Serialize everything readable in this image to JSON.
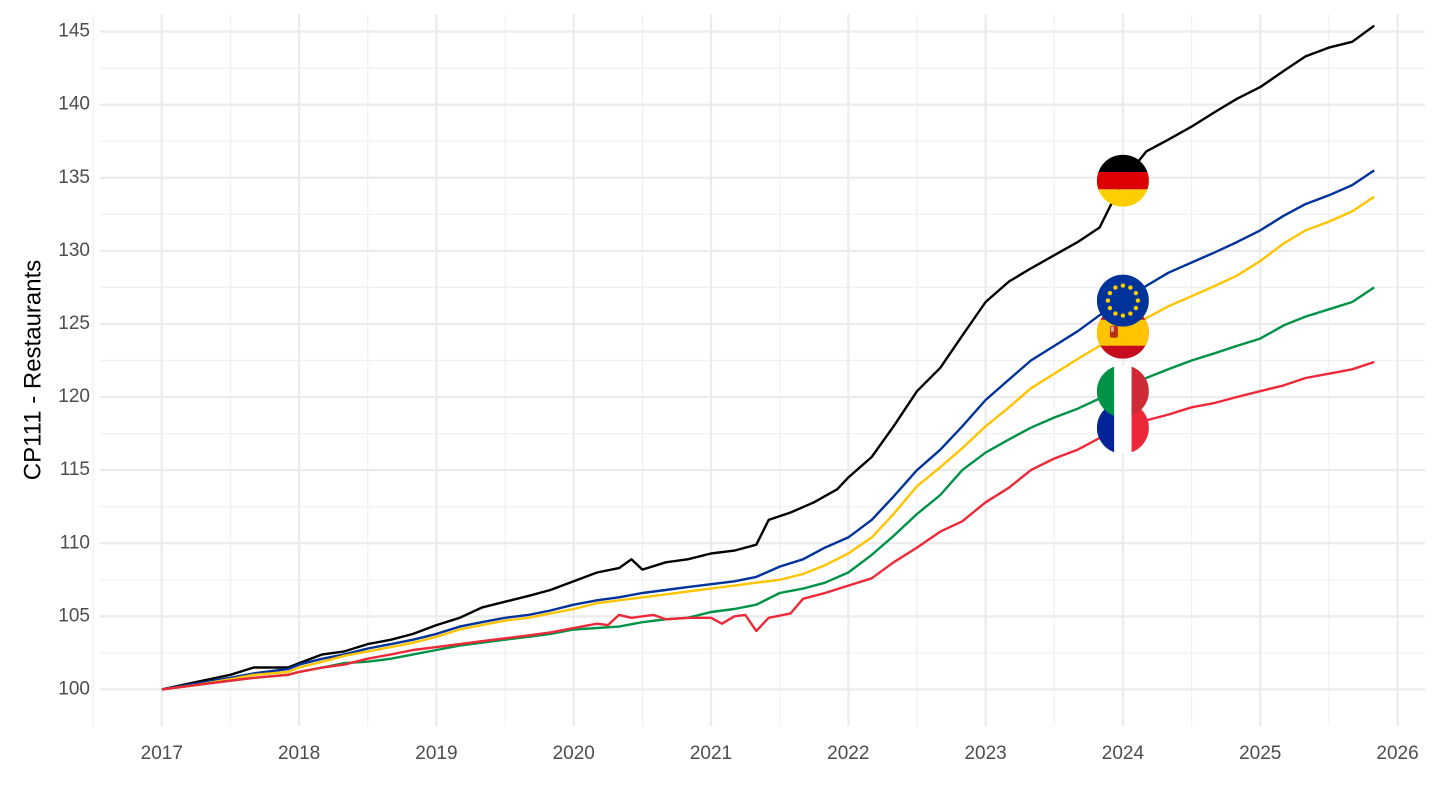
{
  "chart_data": {
    "type": "line",
    "title": "",
    "xlabel": "",
    "ylabel": "CP111 - Restaurants",
    "xlim": [
      2016.55,
      2026.2
    ],
    "ylim": [
      97.5,
      146.2
    ],
    "grid": true,
    "legend": "flag markers at 2024",
    "x_ticks": [
      2017,
      2018,
      2019,
      2020,
      2021,
      2022,
      2023,
      2024,
      2025,
      2026
    ],
    "x_tick_labels": [
      "2017",
      "2018",
      "2019",
      "2020",
      "2021",
      "2022",
      "2023",
      "2024",
      "2025",
      "2026"
    ],
    "y_ticks": [
      100,
      105,
      110,
      115,
      120,
      125,
      130,
      135,
      140,
      145
    ],
    "y_tick_labels": [
      "100",
      "105",
      "110",
      "115",
      "120",
      "125",
      "130",
      "135",
      "140",
      "145"
    ],
    "series": [
      {
        "name": "Germany",
        "color": "#000000",
        "flag": "germany",
        "marker_value": 134.8,
        "points": [
          [
            2017.0,
            100.0
          ],
          [
            2017.25,
            100.5
          ],
          [
            2017.5,
            101.0
          ],
          [
            2017.67,
            101.5
          ],
          [
            2017.92,
            101.5
          ],
          [
            2018.0,
            101.8
          ],
          [
            2018.17,
            102.4
          ],
          [
            2018.33,
            102.6
          ],
          [
            2018.5,
            103.1
          ],
          [
            2018.67,
            103.4
          ],
          [
            2018.83,
            103.8
          ],
          [
            2019.0,
            104.4
          ],
          [
            2019.17,
            104.9
          ],
          [
            2019.33,
            105.6
          ],
          [
            2019.5,
            106.0
          ],
          [
            2019.67,
            106.4
          ],
          [
            2019.83,
            106.8
          ],
          [
            2020.0,
            107.4
          ],
          [
            2020.17,
            108.0
          ],
          [
            2020.33,
            108.3
          ],
          [
            2020.42,
            108.9
          ],
          [
            2020.5,
            108.2
          ],
          [
            2020.67,
            108.7
          ],
          [
            2020.83,
            108.9
          ],
          [
            2021.0,
            109.3
          ],
          [
            2021.17,
            109.5
          ],
          [
            2021.33,
            109.9
          ],
          [
            2021.42,
            111.6
          ],
          [
            2021.58,
            112.1
          ],
          [
            2021.75,
            112.8
          ],
          [
            2021.92,
            113.7
          ],
          [
            2022.0,
            114.5
          ],
          [
            2022.17,
            115.9
          ],
          [
            2022.33,
            118.0
          ],
          [
            2022.5,
            120.4
          ],
          [
            2022.67,
            122.0
          ],
          [
            2022.83,
            124.2
          ],
          [
            2023.0,
            126.5
          ],
          [
            2023.17,
            127.9
          ],
          [
            2023.33,
            128.8
          ],
          [
            2023.5,
            129.7
          ],
          [
            2023.67,
            130.6
          ],
          [
            2023.83,
            131.6
          ],
          [
            2024.0,
            134.8
          ],
          [
            2024.17,
            136.8
          ],
          [
            2024.33,
            137.6
          ],
          [
            2024.5,
            138.5
          ],
          [
            2024.67,
            139.5
          ],
          [
            2024.83,
            140.4
          ],
          [
            2025.0,
            141.2
          ],
          [
            2025.17,
            142.3
          ],
          [
            2025.33,
            143.3
          ],
          [
            2025.5,
            143.9
          ],
          [
            2025.67,
            144.3
          ],
          [
            2025.83,
            145.4
          ]
        ]
      },
      {
        "name": "Euro area",
        "color": "#003399",
        "flag": "eu",
        "marker_value": 126.6,
        "points": [
          [
            2017.0,
            100.0
          ],
          [
            2017.25,
            100.4
          ],
          [
            2017.5,
            100.8
          ],
          [
            2017.67,
            101.1
          ],
          [
            2017.92,
            101.4
          ],
          [
            2018.0,
            101.7
          ],
          [
            2018.17,
            102.1
          ],
          [
            2018.33,
            102.4
          ],
          [
            2018.5,
            102.8
          ],
          [
            2018.67,
            103.1
          ],
          [
            2018.83,
            103.4
          ],
          [
            2019.0,
            103.8
          ],
          [
            2019.17,
            104.3
          ],
          [
            2019.33,
            104.6
          ],
          [
            2019.5,
            104.9
          ],
          [
            2019.67,
            105.1
          ],
          [
            2019.83,
            105.4
          ],
          [
            2020.0,
            105.8
          ],
          [
            2020.17,
            106.1
          ],
          [
            2020.33,
            106.3
          ],
          [
            2020.5,
            106.6
          ],
          [
            2020.67,
            106.8
          ],
          [
            2020.83,
            107.0
          ],
          [
            2021.0,
            107.2
          ],
          [
            2021.17,
            107.4
          ],
          [
            2021.33,
            107.7
          ],
          [
            2021.5,
            108.4
          ],
          [
            2021.67,
            108.9
          ],
          [
            2021.83,
            109.7
          ],
          [
            2022.0,
            110.4
          ],
          [
            2022.17,
            111.6
          ],
          [
            2022.33,
            113.2
          ],
          [
            2022.5,
            115.0
          ],
          [
            2022.67,
            116.4
          ],
          [
            2022.83,
            118.0
          ],
          [
            2023.0,
            119.8
          ],
          [
            2023.17,
            121.2
          ],
          [
            2023.33,
            122.5
          ],
          [
            2023.5,
            123.5
          ],
          [
            2023.67,
            124.5
          ],
          [
            2023.83,
            125.6
          ],
          [
            2024.0,
            126.6
          ],
          [
            2024.17,
            127.6
          ],
          [
            2024.33,
            128.5
          ],
          [
            2024.5,
            129.2
          ],
          [
            2024.67,
            129.9
          ],
          [
            2024.83,
            130.6
          ],
          [
            2025.0,
            131.4
          ],
          [
            2025.17,
            132.4
          ],
          [
            2025.33,
            133.2
          ],
          [
            2025.5,
            133.8
          ],
          [
            2025.67,
            134.5
          ],
          [
            2025.83,
            135.5
          ]
        ]
      },
      {
        "name": "Spain",
        "color": "#ffc400",
        "flag": "spain",
        "marker_value": 124.4,
        "points": [
          [
            2017.0,
            100.0
          ],
          [
            2017.25,
            100.3
          ],
          [
            2017.5,
            100.7
          ],
          [
            2017.67,
            101.0
          ],
          [
            2017.92,
            101.2
          ],
          [
            2018.0,
            101.5
          ],
          [
            2018.17,
            101.9
          ],
          [
            2018.33,
            102.3
          ],
          [
            2018.5,
            102.6
          ],
          [
            2018.67,
            102.9
          ],
          [
            2018.83,
            103.2
          ],
          [
            2019.0,
            103.6
          ],
          [
            2019.17,
            104.1
          ],
          [
            2019.33,
            104.4
          ],
          [
            2019.5,
            104.7
          ],
          [
            2019.67,
            104.9
          ],
          [
            2019.83,
            105.2
          ],
          [
            2020.0,
            105.5
          ],
          [
            2020.17,
            105.9
          ],
          [
            2020.33,
            106.1
          ],
          [
            2020.5,
            106.3
          ],
          [
            2020.67,
            106.5
          ],
          [
            2020.83,
            106.7
          ],
          [
            2021.0,
            106.9
          ],
          [
            2021.17,
            107.1
          ],
          [
            2021.33,
            107.3
          ],
          [
            2021.5,
            107.5
          ],
          [
            2021.67,
            107.9
          ],
          [
            2021.83,
            108.5
          ],
          [
            2022.0,
            109.3
          ],
          [
            2022.17,
            110.4
          ],
          [
            2022.33,
            112.0
          ],
          [
            2022.5,
            113.9
          ],
          [
            2022.67,
            115.2
          ],
          [
            2022.83,
            116.5
          ],
          [
            2023.0,
            118.0
          ],
          [
            2023.17,
            119.3
          ],
          [
            2023.33,
            120.6
          ],
          [
            2023.5,
            121.6
          ],
          [
            2023.67,
            122.6
          ],
          [
            2023.83,
            123.5
          ],
          [
            2024.0,
            124.4
          ],
          [
            2024.17,
            125.4
          ],
          [
            2024.33,
            126.2
          ],
          [
            2024.5,
            126.9
          ],
          [
            2024.67,
            127.6
          ],
          [
            2024.83,
            128.3
          ],
          [
            2025.0,
            129.3
          ],
          [
            2025.17,
            130.5
          ],
          [
            2025.33,
            131.4
          ],
          [
            2025.5,
            132.0
          ],
          [
            2025.67,
            132.7
          ],
          [
            2025.83,
            133.7
          ]
        ]
      },
      {
        "name": "Italy",
        "color": "#009246",
        "flag": "italy",
        "marker_value": 120.4,
        "points": [
          [
            2017.0,
            100.0
          ],
          [
            2017.25,
            100.3
          ],
          [
            2017.5,
            100.6
          ],
          [
            2017.67,
            100.8
          ],
          [
            2017.92,
            101.0
          ],
          [
            2018.0,
            101.2
          ],
          [
            2018.17,
            101.5
          ],
          [
            2018.33,
            101.8
          ],
          [
            2018.5,
            101.9
          ],
          [
            2018.67,
            102.1
          ],
          [
            2018.83,
            102.4
          ],
          [
            2019.0,
            102.7
          ],
          [
            2019.17,
            103.0
          ],
          [
            2019.33,
            103.2
          ],
          [
            2019.5,
            103.4
          ],
          [
            2019.67,
            103.6
          ],
          [
            2019.83,
            103.8
          ],
          [
            2020.0,
            104.1
          ],
          [
            2020.17,
            104.2
          ],
          [
            2020.33,
            104.3
          ],
          [
            2020.5,
            104.6
          ],
          [
            2020.67,
            104.8
          ],
          [
            2020.83,
            104.9
          ],
          [
            2021.0,
            105.3
          ],
          [
            2021.17,
            105.5
          ],
          [
            2021.33,
            105.8
          ],
          [
            2021.5,
            106.6
          ],
          [
            2021.67,
            106.9
          ],
          [
            2021.83,
            107.3
          ],
          [
            2022.0,
            108.0
          ],
          [
            2022.17,
            109.2
          ],
          [
            2022.33,
            110.5
          ],
          [
            2022.5,
            112.0
          ],
          [
            2022.67,
            113.3
          ],
          [
            2022.83,
            115.0
          ],
          [
            2023.0,
            116.2
          ],
          [
            2023.17,
            117.1
          ],
          [
            2023.33,
            117.9
          ],
          [
            2023.5,
            118.6
          ],
          [
            2023.67,
            119.2
          ],
          [
            2023.83,
            119.9
          ],
          [
            2024.0,
            120.5
          ],
          [
            2024.17,
            121.3
          ],
          [
            2024.33,
            121.9
          ],
          [
            2024.5,
            122.5
          ],
          [
            2024.67,
            123.0
          ],
          [
            2024.83,
            123.5
          ],
          [
            2025.0,
            124.0
          ],
          [
            2025.17,
            124.9
          ],
          [
            2025.33,
            125.5
          ],
          [
            2025.5,
            126.0
          ],
          [
            2025.67,
            126.5
          ],
          [
            2025.83,
            127.5
          ]
        ]
      },
      {
        "name": "France",
        "color": "#ed2939",
        "flag": "france",
        "marker_value": 117.9,
        "points": [
          [
            2017.0,
            100.0
          ],
          [
            2017.25,
            100.3
          ],
          [
            2017.5,
            100.6
          ],
          [
            2017.67,
            100.8
          ],
          [
            2017.92,
            101.0
          ],
          [
            2018.0,
            101.2
          ],
          [
            2018.17,
            101.5
          ],
          [
            2018.33,
            101.7
          ],
          [
            2018.5,
            102.1
          ],
          [
            2018.67,
            102.4
          ],
          [
            2018.83,
            102.7
          ],
          [
            2019.0,
            102.9
          ],
          [
            2019.17,
            103.1
          ],
          [
            2019.33,
            103.3
          ],
          [
            2019.5,
            103.5
          ],
          [
            2019.67,
            103.7
          ],
          [
            2019.83,
            103.9
          ],
          [
            2020.0,
            104.2
          ],
          [
            2020.17,
            104.5
          ],
          [
            2020.25,
            104.4
          ],
          [
            2020.33,
            105.1
          ],
          [
            2020.42,
            104.9
          ],
          [
            2020.58,
            105.1
          ],
          [
            2020.67,
            104.8
          ],
          [
            2020.83,
            104.9
          ],
          [
            2021.0,
            104.9
          ],
          [
            2021.08,
            104.5
          ],
          [
            2021.17,
            105.0
          ],
          [
            2021.25,
            105.1
          ],
          [
            2021.33,
            104.0
          ],
          [
            2021.42,
            104.9
          ],
          [
            2021.58,
            105.2
          ],
          [
            2021.67,
            106.2
          ],
          [
            2021.83,
            106.6
          ],
          [
            2022.0,
            107.1
          ],
          [
            2022.17,
            107.6
          ],
          [
            2022.33,
            108.7
          ],
          [
            2022.5,
            109.7
          ],
          [
            2022.67,
            110.8
          ],
          [
            2022.83,
            111.5
          ],
          [
            2023.0,
            112.8
          ],
          [
            2023.17,
            113.8
          ],
          [
            2023.33,
            115.0
          ],
          [
            2023.5,
            115.8
          ],
          [
            2023.67,
            116.4
          ],
          [
            2023.83,
            117.2
          ],
          [
            2024.0,
            117.8
          ],
          [
            2024.17,
            118.4
          ],
          [
            2024.33,
            118.8
          ],
          [
            2024.5,
            119.3
          ],
          [
            2024.67,
            119.6
          ],
          [
            2024.83,
            120.0
          ],
          [
            2025.0,
            120.4
          ],
          [
            2025.17,
            120.8
          ],
          [
            2025.33,
            121.3
          ],
          [
            2025.5,
            121.6
          ],
          [
            2025.67,
            121.9
          ],
          [
            2025.83,
            122.4
          ]
        ]
      }
    ]
  }
}
